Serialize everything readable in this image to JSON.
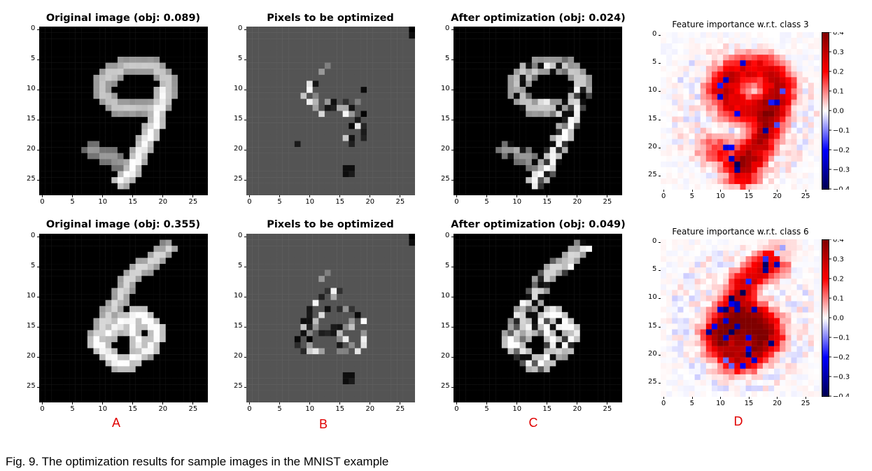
{
  "figure": {
    "caption": "Fig. 9. The optimization results for sample images in the MNIST example",
    "column_labels": [
      "A",
      "B",
      "C",
      "D"
    ],
    "colors": {
      "label": "#e00000",
      "background_gray": "#555555"
    }
  },
  "rows": [
    {
      "titles": [
        "Original image (obj: 0.089)",
        "Pixels to be optimized",
        "After optimization (obj: 0.024)",
        "Feature importance w.r.t. class 3"
      ],
      "digit": "9",
      "class": 3
    },
    {
      "titles": [
        "Original image (obj: 0.355)",
        "Pixels to be optimized",
        "After optimization (obj: 0.049)",
        "Feature importance w.r.t. class 6"
      ],
      "digit": "6",
      "class": 6
    }
  ],
  "chart_data": [
    {
      "type": "heatmap",
      "title": "Original image (obj: 0.089)",
      "grid": "28x28",
      "xticks": [
        0,
        5,
        10,
        15,
        20,
        25
      ],
      "yticks": [
        0,
        5,
        10,
        15,
        20,
        25
      ],
      "colormap": "gray"
    },
    {
      "type": "heatmap",
      "title": "Pixels to be optimized",
      "grid": "28x28",
      "xticks": [
        0,
        5,
        10,
        15,
        20,
        25
      ],
      "yticks": [
        0,
        5,
        10,
        15,
        20,
        25
      ],
      "colormap": "gray"
    },
    {
      "type": "heatmap",
      "title": "After optimization (obj: 0.024)",
      "grid": "28x28",
      "xticks": [
        0,
        5,
        10,
        15,
        20,
        25
      ],
      "yticks": [
        0,
        5,
        10,
        15,
        20,
        25
      ],
      "colormap": "gray"
    },
    {
      "type": "heatmap",
      "title": "Feature importance w.r.t. class 3",
      "grid": "28x28",
      "xticks": [
        0,
        5,
        10,
        15,
        20,
        25
      ],
      "yticks": [
        0,
        5,
        10,
        15,
        20,
        25
      ],
      "colormap": "seismic",
      "colorbar_ticks": [
        0.4,
        0.3,
        0.2,
        0.1,
        0.0,
        -0.1,
        -0.2,
        -0.3,
        -0.4
      ],
      "colorbar_range": [
        -0.4,
        0.4
      ]
    },
    {
      "type": "heatmap",
      "title": "Original image (obj: 0.355)",
      "grid": "28x28",
      "xticks": [
        0,
        5,
        10,
        15,
        20,
        25
      ],
      "yticks": [
        0,
        5,
        10,
        15,
        20,
        25
      ],
      "colormap": "gray"
    },
    {
      "type": "heatmap",
      "title": "Pixels to be optimized",
      "grid": "28x28",
      "xticks": [
        0,
        5,
        10,
        15,
        20,
        25
      ],
      "yticks": [
        0,
        5,
        10,
        15,
        20,
        25
      ],
      "colormap": "gray"
    },
    {
      "type": "heatmap",
      "title": "After optimization (obj: 0.049)",
      "grid": "28x28",
      "xticks": [
        0,
        5,
        10,
        15,
        20,
        25
      ],
      "yticks": [
        0,
        5,
        10,
        15,
        20,
        25
      ],
      "colormap": "gray"
    },
    {
      "type": "heatmap",
      "title": "Feature importance w.r.t. class 6",
      "grid": "28x28",
      "xticks": [
        0,
        5,
        10,
        15,
        20,
        25
      ],
      "yticks": [
        0,
        5,
        10,
        15,
        20,
        25
      ],
      "colormap": "seismic",
      "colorbar_ticks": [
        0.4,
        0.3,
        0.2,
        0.1,
        0.0,
        -0.1,
        -0.2,
        -0.3,
        -0.4
      ],
      "colorbar_range": [
        -0.4,
        0.4
      ]
    }
  ]
}
